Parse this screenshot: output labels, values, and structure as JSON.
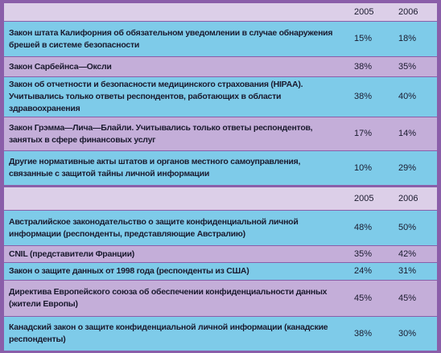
{
  "tables": [
    {
      "years": [
        "2005",
        "2006"
      ],
      "rows": [
        [
          "Закон штата Калифорния об обязательном уведомлении в случае обнаружения брешей в системе безопасности",
          "15%",
          "18%"
        ],
        [
          "Закон Сарбейнса—Оксли",
          "38%",
          "35%"
        ],
        [
          "Закон об отчетности и безопасности медицинского страхования (HIPAA). Учитывались только ответы респондентов, работающих в области здравоохранения",
          "38%",
          "40%"
        ],
        [
          "Закон Грэмма—Лича—Блайли. Учитывались только ответы респондентов, занятых в сфере финансовых услуг",
          "17%",
          "14%"
        ],
        [
          "Другие нормативные акты штатов и органов местного самоуправления, связанные с защитой тайны личной информации",
          "10%",
          "29%"
        ]
      ]
    },
    {
      "years": [
        "2005",
        "2006"
      ],
      "rows": [
        [
          "Австралийское законодательство о защите конфиденциальной личной информации (респонденты, представляющие Австралию)",
          "48%",
          "50%"
        ],
        [
          "CNIL (представители Франции)",
          "35%",
          "42%"
        ],
        [
          "Закон о защите данных от 1998 года (респонденты из США)",
          "24%",
          "31%"
        ],
        [
          "Директива Европейского союза об обеспечении конфиденциальности данных (жители Европы)",
          "45%",
          "45%"
        ],
        [
          "Канадский закон о защите конфиденциальной личной информации (канадские респонденты)",
          "38%",
          "30%"
        ]
      ]
    }
  ]
}
